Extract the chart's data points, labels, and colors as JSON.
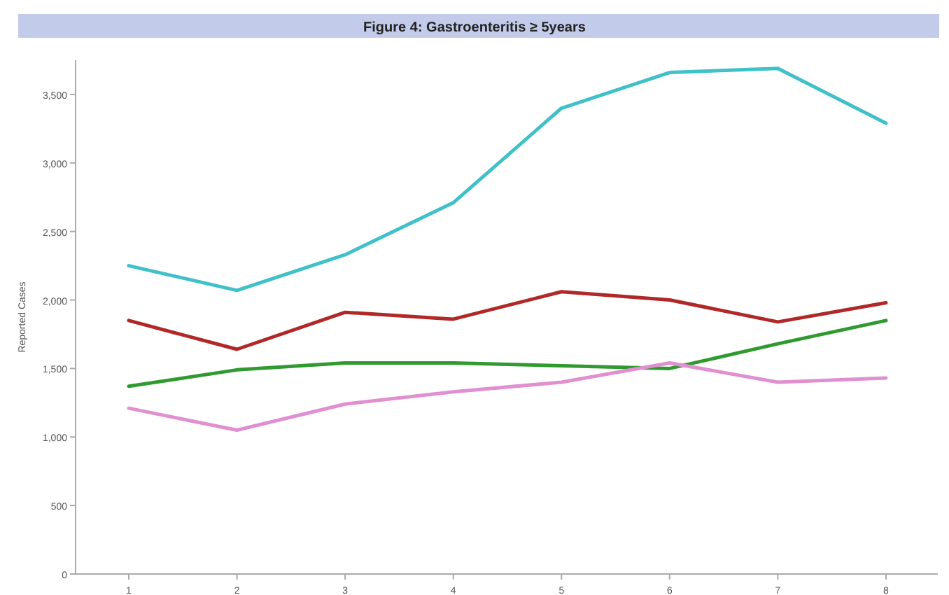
{
  "chart_data": {
    "type": "line",
    "title": "Figure 4: Gastroenteritis ≥ 5years",
    "ylabel": "Reported Cases",
    "categories": [
      "1",
      "2",
      "3",
      "4",
      "5",
      "6",
      "7",
      "8"
    ],
    "series": [
      {
        "color": "#40c0c8",
        "values": [
          2250,
          2070,
          2330,
          2710,
          3400,
          3660,
          3690,
          3290
        ]
      },
      {
        "color": "#b02828",
        "values": [
          1850,
          1640,
          1910,
          1860,
          2060,
          2000,
          1840,
          1980
        ]
      },
      {
        "color": "#309a30",
        "values": [
          1370,
          1490,
          1540,
          1540,
          1520,
          1500,
          1680,
          1850
        ]
      },
      {
        "color": "#e090d0",
        "values": [
          1210,
          1050,
          1240,
          1330,
          1400,
          1540,
          1400,
          1430
        ]
      }
    ],
    "ylim": [
      0,
      3750
    ],
    "yticks": [
      0,
      500,
      {
        "value": 1000,
        "label": "1,000"
      },
      {
        "value": 1500,
        "label": "1,500"
      },
      {
        "value": 2000,
        "label": "2,000"
      },
      {
        "value": 2500,
        "label": "2,500"
      },
      {
        "value": 3000,
        "label": "3,000"
      },
      {
        "value": 3500,
        "label": "3,500"
      }
    ],
    "grid": false,
    "marker": "none",
    "line_style": "solid"
  }
}
